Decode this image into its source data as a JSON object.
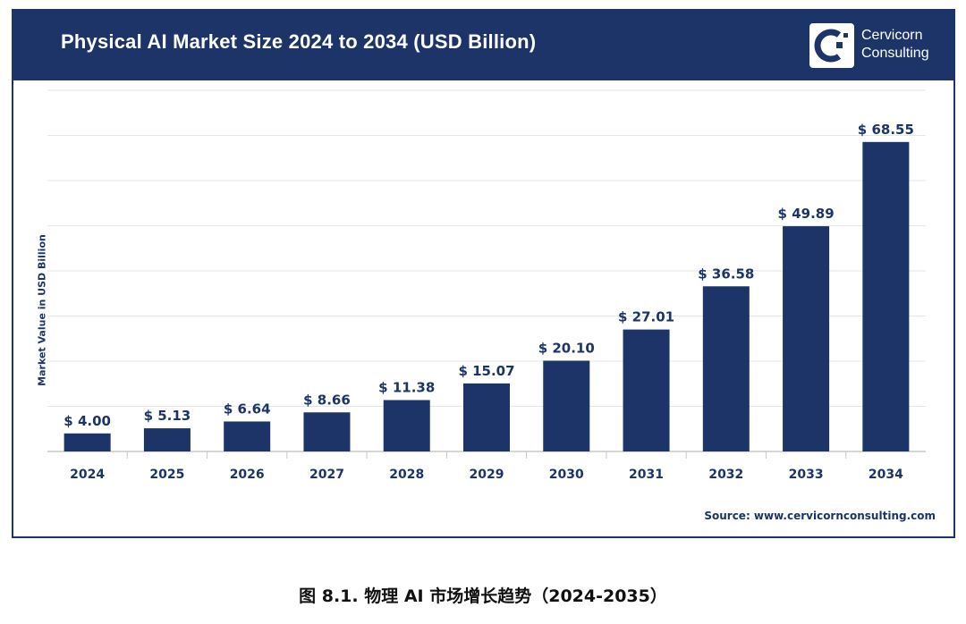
{
  "header": {
    "title": "Physical AI Market Size 2024 to 2034 (USD Billion)",
    "logo_line1": "Cervicorn",
    "logo_line2": "Consulting"
  },
  "source": "Source: www.cervicornconsulting.com",
  "caption": "图 8.1. 物理 AI 市场增长趋势（2024-2035）",
  "colors": {
    "bar": "#1c3468",
    "header_bg": "#1c3468",
    "grid": "#e6e6e6",
    "text": "#1c3468"
  },
  "chart_data": {
    "type": "bar",
    "title": "Physical AI Market Size 2024 to 2034 (USD Billion)",
    "xlabel": "",
    "ylabel": "Market Value in USD Billion",
    "categories": [
      "2024",
      "2025",
      "2026",
      "2027",
      "2028",
      "2029",
      "2030",
      "2031",
      "2032",
      "2033",
      "2034"
    ],
    "values": [
      4.0,
      5.13,
      6.64,
      8.66,
      11.38,
      15.07,
      20.1,
      27.01,
      36.58,
      49.89,
      68.55
    ],
    "labels": [
      "$ 4.00",
      "$ 5.13",
      "$ 6.64",
      "$ 8.66",
      "$ 11.38",
      "$ 15.07",
      "$ 20.10",
      "$ 27.01",
      "$ 36.58",
      "$ 49.89",
      "$ 68.55"
    ],
    "ylim": [
      0,
      80
    ],
    "grid": true,
    "legend": "none"
  }
}
